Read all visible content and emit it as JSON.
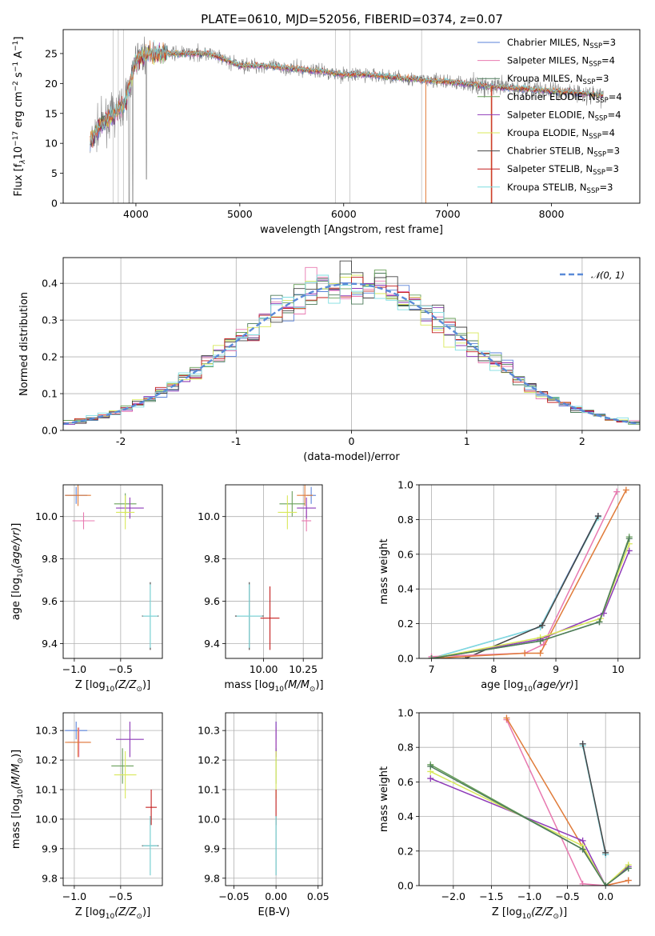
{
  "figure": {
    "title": "PLATE=0610, MJD=52056, FIBERID=0374, z=0.07"
  },
  "legend_models": [
    {
      "label": "Chabrier MILES, N",
      "sub": "SSP",
      "suffix": "=3",
      "color": "#5a82d8"
    },
    {
      "label": "Salpeter MILES, N",
      "sub": "SSP",
      "suffix": "=4",
      "color": "#e879b0"
    },
    {
      "label": "Kroupa MILES, N",
      "sub": "SSP",
      "suffix": "=3",
      "color": "#4d7b5a"
    },
    {
      "label": "Chabrier ELODIE, N",
      "sub": "SSP",
      "suffix": "=4",
      "color": "#69a05a"
    },
    {
      "label": "Salpeter ELODIE, N",
      "sub": "SSP",
      "suffix": "=4",
      "color": "#8e3ab8"
    },
    {
      "label": "Kroupa ELODIE, N",
      "sub": "SSP",
      "suffix": "=4",
      "color": "#d8e85a"
    },
    {
      "label": "Chabrier STELIB, N",
      "sub": "SSP",
      "suffix": "=3",
      "color": "#444444"
    },
    {
      "label": "Salpeter STELIB, N",
      "sub": "SSP",
      "suffix": "=3",
      "color": "#c41e1e"
    },
    {
      "label": "Kroupa STELIB, N",
      "sub": "SSP",
      "suffix": "=3",
      "color": "#7fdde0"
    }
  ],
  "extra_colors": {
    "orange": "#e07b39",
    "data_grey": "#808080",
    "lightgray": "#c0c0c0"
  },
  "chart_data": [
    {
      "id": "spectrum",
      "type": "line",
      "xlabel": "wavelength [Angstrom, rest frame]",
      "ylabel": "Flux [f",
      "xlim": [
        3300,
        8850
      ],
      "ylim": [
        0,
        29
      ],
      "xticks": [
        4000,
        5000,
        6000,
        7000,
        8000
      ],
      "yticks": [
        0,
        5,
        10,
        15,
        20,
        25
      ],
      "continuum": [
        [
          3560,
          10
        ],
        [
          3650,
          13
        ],
        [
          3800,
          15
        ],
        [
          3900,
          17
        ],
        [
          4000,
          24
        ],
        [
          4100,
          25
        ],
        [
          4300,
          25
        ],
        [
          4500,
          25
        ],
        [
          4700,
          25
        ],
        [
          5000,
          23
        ],
        [
          5200,
          23
        ],
        [
          5500,
          22.5
        ],
        [
          5800,
          22
        ],
        [
          6000,
          21.5
        ],
        [
          6200,
          21.5
        ],
        [
          6500,
          21
        ],
        [
          6800,
          20.5
        ],
        [
          7000,
          20.3
        ],
        [
          7400,
          19.5
        ],
        [
          7800,
          19
        ],
        [
          8200,
          18.5
        ],
        [
          8500,
          18
        ],
        [
          8850,
          17.5
        ]
      ]
    },
    {
      "id": "residuals",
      "type": "line",
      "xlabel": "(data-model)/error",
      "ylabel": "Normed distribution",
      "xlim": [
        -2.5,
        2.5
      ],
      "ylim": [
        0,
        0.47
      ],
      "xticks": [
        -2,
        -1,
        0,
        1,
        2
      ],
      "yticks": [
        0.0,
        0.1,
        0.2,
        0.3,
        0.4
      ],
      "legend": "𝒩(0, 1)"
    },
    {
      "id": "age-vs-Z",
      "type": "scatter",
      "xlabel": "Z [log",
      "ylabel": "age  [log",
      "xlim": [
        -1.12,
        -0.05
      ],
      "ylim": [
        9.33,
        10.15
      ],
      "xticks": [
        -1.0,
        -0.5
      ],
      "xticklabels": [
        "−1.0",
        "−0.5"
      ],
      "yticks": [
        9.4,
        9.6,
        9.8,
        10.0
      ],
      "points": [
        {
          "x": -0.98,
          "y": 10.1,
          "xerr": 0.12,
          "yerr": 0.04,
          "c": 0
        },
        {
          "x": -0.9,
          "y": 9.98,
          "xerr": 0.12,
          "yerr": 0.04,
          "c": 1
        },
        {
          "x": -0.96,
          "y": 10.1,
          "xerr": 0.14,
          "yerr": 0.05,
          "c": 9
        },
        {
          "x": -0.45,
          "y": 10.06,
          "xerr": 0.12,
          "yerr": 0.05,
          "c": 3
        },
        {
          "x": -0.4,
          "y": 10.04,
          "xerr": 0.15,
          "yerr": 0.05,
          "c": 4
        },
        {
          "x": -0.45,
          "y": 10.02,
          "xerr": 0.1,
          "yerr": 0.08,
          "c": 5
        },
        {
          "x": -0.18,
          "y": 9.53,
          "xerr": 0.09,
          "yerr": 0.16,
          "c": 6
        },
        {
          "x": -0.18,
          "y": 9.53,
          "xerr": 0.08,
          "yerr": 0.15,
          "c": 8
        }
      ]
    },
    {
      "id": "age-vs-mass",
      "type": "scatter",
      "xlabel": "mass [log",
      "ylabel": "",
      "xlim": [
        9.76,
        10.37
      ],
      "ylim": [
        9.33,
        10.15
      ],
      "xticks": [
        10.0,
        10.25
      ],
      "xticklabels": [
        "10.00",
        "10.25"
      ],
      "yticks": [
        9.4,
        9.6,
        9.8,
        10.0
      ],
      "points": [
        {
          "x": 10.3,
          "y": 10.1,
          "xerr": 0.03,
          "yerr": 0.04,
          "c": 0
        },
        {
          "x": 10.27,
          "y": 9.98,
          "xerr": 0.03,
          "yerr": 0.05,
          "c": 1
        },
        {
          "x": 10.26,
          "y": 10.1,
          "xerr": 0.05,
          "yerr": 0.05,
          "c": 9
        },
        {
          "x": 10.18,
          "y": 10.06,
          "xerr": 0.08,
          "yerr": 0.06,
          "c": 3
        },
        {
          "x": 10.27,
          "y": 10.04,
          "xerr": 0.06,
          "yerr": 0.05,
          "c": 4
        },
        {
          "x": 10.15,
          "y": 10.02,
          "xerr": 0.06,
          "yerr": 0.08,
          "c": 5
        },
        {
          "x": 9.91,
          "y": 9.53,
          "xerr": 0.09,
          "yerr": 0.16,
          "c": 6
        },
        {
          "x": 10.04,
          "y": 9.52,
          "xerr": 0.06,
          "yerr": 0.15,
          "c": 7
        },
        {
          "x": 9.91,
          "y": 9.53,
          "xerr": 0.08,
          "yerr": 0.15,
          "c": 8
        }
      ]
    },
    {
      "id": "weight-vs-age",
      "type": "line",
      "xlabel": "age  [log",
      "ylabel": "mass weight",
      "xlim": [
        6.8,
        10.35
      ],
      "ylim": [
        0,
        1.0
      ],
      "xticks": [
        7,
        8,
        9,
        10
      ],
      "yticks": [
        0.0,
        0.2,
        0.4,
        0.6,
        0.8,
        1.0
      ],
      "series": [
        {
          "c": 0,
          "x": [
            7.0,
            8.75,
            9.68
          ],
          "y": [
            0.0,
            0.18,
            0.82
          ]
        },
        {
          "c": 8,
          "x": [
            7.0,
            8.75,
            9.68
          ],
          "y": [
            0.0,
            0.18,
            0.81
          ]
        },
        {
          "c": 6,
          "x": [
            7.55,
            8.78,
            9.68
          ],
          "y": [
            0.0,
            0.19,
            0.82
          ]
        },
        {
          "c": 1,
          "x": [
            7.0,
            8.5,
            8.8,
            9.98
          ],
          "y": [
            0.01,
            0.03,
            0.08,
            0.96
          ]
        },
        {
          "c": 9,
          "x": [
            7.0,
            8.5,
            8.75,
            10.13
          ],
          "y": [
            0.0,
            0.03,
            0.03,
            0.97
          ]
        },
        {
          "c": 4,
          "x": [
            7.0,
            8.75,
            9.77,
            10.18
          ],
          "y": [
            0.0,
            0.11,
            0.26,
            0.62
          ]
        },
        {
          "c": 5,
          "x": [
            7.0,
            8.75,
            9.72,
            10.18
          ],
          "y": [
            0.0,
            0.12,
            0.23,
            0.66
          ]
        },
        {
          "c": 3,
          "x": [
            7.0,
            8.75,
            9.7,
            10.18
          ],
          "y": [
            0.0,
            0.1,
            0.21,
            0.7
          ]
        },
        {
          "c": 2,
          "x": [
            7.0,
            8.75,
            9.7,
            10.18
          ],
          "y": [
            0.0,
            0.1,
            0.21,
            0.69
          ]
        }
      ]
    },
    {
      "id": "mass-vs-Z",
      "type": "scatter",
      "xlabel": "Z [log",
      "ylabel": "mass [log",
      "xlim": [
        -1.12,
        -0.05
      ],
      "ylim": [
        9.775,
        10.36
      ],
      "xticks": [
        -1.0,
        -0.5
      ],
      "xticklabels": [
        "−1.0",
        "−0.5"
      ],
      "yticks": [
        9.8,
        9.9,
        10.0,
        10.1,
        10.2,
        10.3
      ],
      "points": [
        {
          "x": -0.98,
          "y": 10.3,
          "xerr": 0.12,
          "yerr": 0.03,
          "c": 0
        },
        {
          "x": -0.95,
          "y": 10.26,
          "xerr": 0.12,
          "yerr": 0.05,
          "c": 1
        },
        {
          "x": -0.96,
          "y": 10.26,
          "xerr": 0.14,
          "yerr": 0.05,
          "c": 9
        },
        {
          "x": -0.48,
          "y": 10.18,
          "xerr": 0.12,
          "yerr": 0.06,
          "c": 3
        },
        {
          "x": -0.4,
          "y": 10.27,
          "xerr": 0.15,
          "yerr": 0.06,
          "c": 4
        },
        {
          "x": -0.45,
          "y": 10.15,
          "xerr": 0.12,
          "yerr": 0.08,
          "c": 5
        },
        {
          "x": -0.18,
          "y": 9.91,
          "xerr": 0.09,
          "yerr": 0.1,
          "c": 6
        },
        {
          "x": -0.17,
          "y": 10.04,
          "xerr": 0.06,
          "yerr": 0.06,
          "c": 7
        },
        {
          "x": -0.18,
          "y": 9.91,
          "xerr": 0.08,
          "yerr": 0.1,
          "c": 8
        }
      ]
    },
    {
      "id": "mass-vs-ebv",
      "type": "scatter",
      "xlabel": "E(B-V)",
      "ylabel": "",
      "xlim": [
        -0.06,
        0.055
      ],
      "ylim": [
        9.775,
        10.36
      ],
      "xticks": [
        -0.05,
        0.0,
        0.05
      ],
      "xticklabels": [
        "−0.05",
        "0.00",
        "0.05"
      ],
      "yticks": [
        9.8,
        9.9,
        10.0,
        10.1,
        10.2,
        10.3
      ],
      "points": [
        {
          "x": 0.0,
          "y": 10.3,
          "xerr": 0.0,
          "yerr": 0.03,
          "c": 0
        },
        {
          "x": 0.0,
          "y": 10.26,
          "xerr": 0.0,
          "yerr": 0.05,
          "c": 1
        },
        {
          "x": 0.0,
          "y": 10.18,
          "xerr": 0.0,
          "yerr": 0.06,
          "c": 3
        },
        {
          "x": 0.0,
          "y": 10.27,
          "xerr": 0.0,
          "yerr": 0.06,
          "c": 4
        },
        {
          "x": 0.0,
          "y": 10.15,
          "xerr": 0.0,
          "yerr": 0.08,
          "c": 5
        },
        {
          "x": 0.0,
          "y": 10.04,
          "xerr": 0.0,
          "yerr": 0.06,
          "c": 7
        },
        {
          "x": 0.0,
          "y": 9.91,
          "xerr": 0.0,
          "yerr": 0.1,
          "c": 6
        },
        {
          "x": 0.0,
          "y": 9.91,
          "xerr": 0.0,
          "yerr": 0.1,
          "c": 8
        }
      ]
    },
    {
      "id": "weight-vs-Z",
      "type": "line",
      "xlabel": "Z [log",
      "ylabel": "mass weight",
      "xlim": [
        -2.45,
        0.45
      ],
      "ylim": [
        0,
        1.0
      ],
      "xticks": [
        -2.0,
        -1.5,
        -1.0,
        -0.5,
        0.0
      ],
      "xticklabels": [
        "−2.0",
        "−1.5",
        "−1.0",
        "−0.5",
        "0.0"
      ],
      "yticks": [
        0.0,
        0.2,
        0.4,
        0.6,
        0.8,
        1.0
      ],
      "series": [
        {
          "c": 0,
          "x": [
            -0.3,
            0.0
          ],
          "y": [
            0.82,
            0.18
          ]
        },
        {
          "c": 8,
          "x": [
            -0.3,
            0.0
          ],
          "y": [
            0.81,
            0.18
          ]
        },
        {
          "c": 6,
          "x": [
            -0.3,
            0.0
          ],
          "y": [
            0.82,
            0.19
          ]
        },
        {
          "c": 1,
          "x": [
            -1.3,
            -0.3,
            0.0,
            0.3
          ],
          "y": [
            0.96,
            0.01,
            0.0,
            0.03
          ]
        },
        {
          "c": 9,
          "x": [
            -1.3,
            0.0,
            0.3
          ],
          "y": [
            0.97,
            0.0,
            0.03
          ]
        },
        {
          "c": 4,
          "x": [
            -2.3,
            -0.3,
            0.0,
            0.3
          ],
          "y": [
            0.62,
            0.26,
            0.0,
            0.11
          ]
        },
        {
          "c": 5,
          "x": [
            -2.3,
            -0.3,
            0.0,
            0.3
          ],
          "y": [
            0.66,
            0.23,
            0.0,
            0.12
          ]
        },
        {
          "c": 3,
          "x": [
            -2.3,
            -0.3,
            0.0,
            0.3
          ],
          "y": [
            0.7,
            0.21,
            0.0,
            0.1
          ]
        },
        {
          "c": 2,
          "x": [
            -2.3,
            -0.3,
            0.0,
            0.3
          ],
          "y": [
            0.69,
            0.21,
            0.0,
            0.1
          ]
        }
      ]
    }
  ]
}
